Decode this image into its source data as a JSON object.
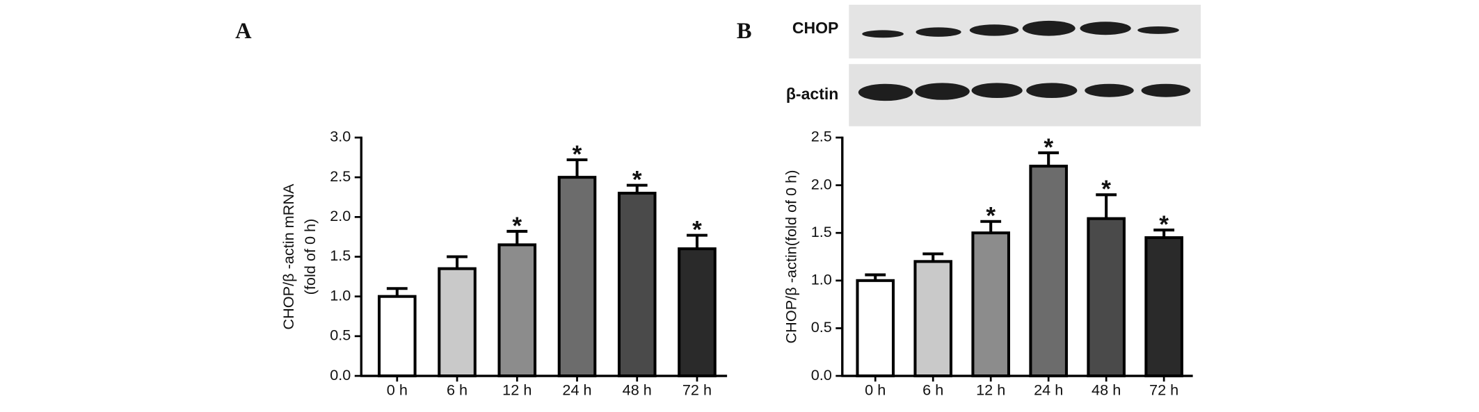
{
  "chart_data": [
    {
      "type": "bar",
      "panel": "A",
      "ylabel": [
        "CHOP/β -actin mRNA",
        "(fold of 0 h)"
      ],
      "categories": [
        "0 h",
        "6 h",
        "12 h",
        "24 h",
        "48 h",
        "72 h"
      ],
      "values": [
        1.0,
        1.35,
        1.65,
        2.5,
        2.3,
        1.6
      ],
      "errors": [
        0.1,
        0.15,
        0.17,
        0.22,
        0.1,
        0.17
      ],
      "significance": [
        null,
        null,
        "*",
        "*",
        "*",
        "*"
      ],
      "colors": [
        "#ffffff",
        "#c9c9c9",
        "#8c8c8c",
        "#6c6c6c",
        "#4a4a4a",
        "#2a2a2a"
      ],
      "ylim": [
        0,
        3
      ],
      "yticks": [
        {
          "value": 0,
          "label": "0.0"
        },
        0.5,
        {
          "value": 1,
          "label": "1.0"
        },
        1.5,
        {
          "value": 2,
          "label": "2.0"
        },
        2.5,
        {
          "value": 3,
          "label": "3.0"
        }
      ]
    },
    {
      "type": "bar",
      "panel": "B",
      "ylabel": [
        "CHOP/β -actin(fold of 0 h)"
      ],
      "blot_labels": [
        "CHOP",
        "β-actin"
      ],
      "categories": [
        "0 h",
        "6 h",
        "12 h",
        "24 h",
        "48 h",
        "72 h"
      ],
      "values": [
        1.0,
        1.2,
        1.5,
        2.2,
        1.65,
        1.45
      ],
      "errors": [
        0.06,
        0.08,
        0.12,
        0.14,
        0.25,
        0.08
      ],
      "significance": [
        null,
        null,
        "*",
        "*",
        "*",
        "*"
      ],
      "colors": [
        "#ffffff",
        "#c9c9c9",
        "#8c8c8c",
        "#6c6c6c",
        "#4a4a4a",
        "#2a2a2a"
      ],
      "ylim": [
        0,
        2.5
      ],
      "yticks": [
        {
          "value": 0,
          "label": "0.0"
        },
        0.5,
        {
          "value": 1,
          "label": "1.0"
        },
        1.5,
        {
          "value": 2,
          "label": "2.0"
        },
        2.5
      ]
    }
  ]
}
